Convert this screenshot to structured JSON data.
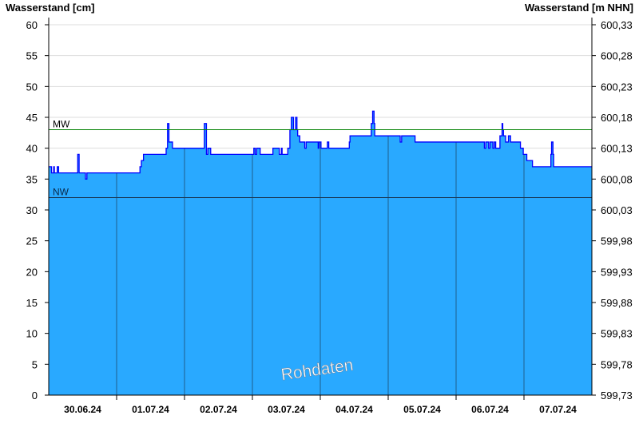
{
  "chart_data": {
    "type": "area",
    "left_axis_label": "Wasserstand [cm]",
    "right_axis_label": "Wasserstand [m NHN]",
    "ylim": [
      0,
      60
    ],
    "y_ticks": [
      0,
      5,
      10,
      15,
      20,
      25,
      30,
      35,
      40,
      45,
      50,
      55,
      60
    ],
    "right_tick_labels": [
      "599,73",
      "599,78",
      "599,83",
      "599,88",
      "599,93",
      "599,98",
      "600,03",
      "600,08",
      "600,13",
      "600,18",
      "600,23",
      "600,28",
      "600,33"
    ],
    "xlim": [
      "2024-06-30T00:00",
      "2024-07-08T00:00"
    ],
    "x_tick_labels": [
      "30.06.24",
      "01.07.24",
      "02.07.24",
      "03.07.24",
      "04.07.24",
      "05.07.24",
      "06.07.24",
      "07.07.24"
    ],
    "grid": "horizontal",
    "reference_lines": [
      {
        "label": "MW",
        "value": 43,
        "color": "#008000"
      },
      {
        "label": "NW",
        "value": 32,
        "color": "#1a3a5a"
      }
    ],
    "watermark": "Rohdaten",
    "colors": {
      "fill": "#29a9ff",
      "line": "#0000ff",
      "grid": "#dddddd"
    },
    "series": [
      {
        "step": true,
        "points": [
          [
            "2024-06-30T00:00",
            37
          ],
          [
            "2024-06-30T01:00",
            36
          ],
          [
            "2024-06-30T01:45",
            37
          ],
          [
            "2024-06-30T02:00",
            36
          ],
          [
            "2024-06-30T03:00",
            37
          ],
          [
            "2024-06-30T03:30",
            36
          ],
          [
            "2024-06-30T10:15",
            39
          ],
          [
            "2024-06-30T10:45",
            36
          ],
          [
            "2024-06-30T13:00",
            35
          ],
          [
            "2024-06-30T13:30",
            36
          ],
          [
            "2024-07-01T08:15",
            37
          ],
          [
            "2024-07-01T08:45",
            38
          ],
          [
            "2024-07-01T09:30",
            39
          ],
          [
            "2024-07-01T17:30",
            40
          ],
          [
            "2024-07-01T18:00",
            44
          ],
          [
            "2024-07-01T18:30",
            41
          ],
          [
            "2024-07-01T19:45",
            40
          ],
          [
            "2024-07-02T07:00",
            44
          ],
          [
            "2024-07-02T07:45",
            39
          ],
          [
            "2024-07-02T08:15",
            40
          ],
          [
            "2024-07-02T09:15",
            39
          ],
          [
            "2024-07-03T00:30",
            40
          ],
          [
            "2024-07-03T01:00",
            39
          ],
          [
            "2024-07-03T01:30",
            40
          ],
          [
            "2024-07-03T02:45",
            39
          ],
          [
            "2024-07-03T07:15",
            40
          ],
          [
            "2024-07-03T09:30",
            39
          ],
          [
            "2024-07-03T10:15",
            40
          ],
          [
            "2024-07-03T10:30",
            39
          ],
          [
            "2024-07-03T12:30",
            40
          ],
          [
            "2024-07-03T13:15",
            43
          ],
          [
            "2024-07-03T13:45",
            45
          ],
          [
            "2024-07-03T14:30",
            43
          ],
          [
            "2024-07-03T15:15",
            45
          ],
          [
            "2024-07-03T15:45",
            43
          ],
          [
            "2024-07-03T16:00",
            42
          ],
          [
            "2024-07-03T16:45",
            41
          ],
          [
            "2024-07-03T18:30",
            40
          ],
          [
            "2024-07-03T19:00",
            41
          ],
          [
            "2024-07-03T23:15",
            40
          ],
          [
            "2024-07-03T23:30",
            41
          ],
          [
            "2024-07-04T00:15",
            40
          ],
          [
            "2024-07-04T02:30",
            41
          ],
          [
            "2024-07-04T03:00",
            40
          ],
          [
            "2024-07-04T10:15",
            41
          ],
          [
            "2024-07-04T10:30",
            42
          ],
          [
            "2024-07-04T18:00",
            44
          ],
          [
            "2024-07-04T18:30",
            46
          ],
          [
            "2024-07-04T19:00",
            44
          ],
          [
            "2024-07-04T19:15",
            42
          ],
          [
            "2024-07-05T04:15",
            41
          ],
          [
            "2024-07-05T04:45",
            42
          ],
          [
            "2024-07-05T09:30",
            41
          ],
          [
            "2024-07-06T10:00",
            40
          ],
          [
            "2024-07-06T10:30",
            41
          ],
          [
            "2024-07-06T11:30",
            40
          ],
          [
            "2024-07-06T12:00",
            41
          ],
          [
            "2024-07-06T13:00",
            40
          ],
          [
            "2024-07-06T13:30",
            41
          ],
          [
            "2024-07-06T14:00",
            40
          ],
          [
            "2024-07-06T15:30",
            42
          ],
          [
            "2024-07-06T16:15",
            44
          ],
          [
            "2024-07-06T16:30",
            43
          ],
          [
            "2024-07-06T16:45",
            42
          ],
          [
            "2024-07-06T17:30",
            41
          ],
          [
            "2024-07-06T18:30",
            42
          ],
          [
            "2024-07-06T19:15",
            41
          ],
          [
            "2024-07-06T22:45",
            40
          ],
          [
            "2024-07-06T23:45",
            39
          ],
          [
            "2024-07-07T01:00",
            38
          ],
          [
            "2024-07-07T03:00",
            37
          ],
          [
            "2024-07-07T09:30",
            39
          ],
          [
            "2024-07-07T09:45",
            41
          ],
          [
            "2024-07-07T10:15",
            39
          ],
          [
            "2024-07-07T10:30",
            37
          ],
          [
            "2024-07-08T00:00",
            37
          ]
        ]
      }
    ]
  }
}
